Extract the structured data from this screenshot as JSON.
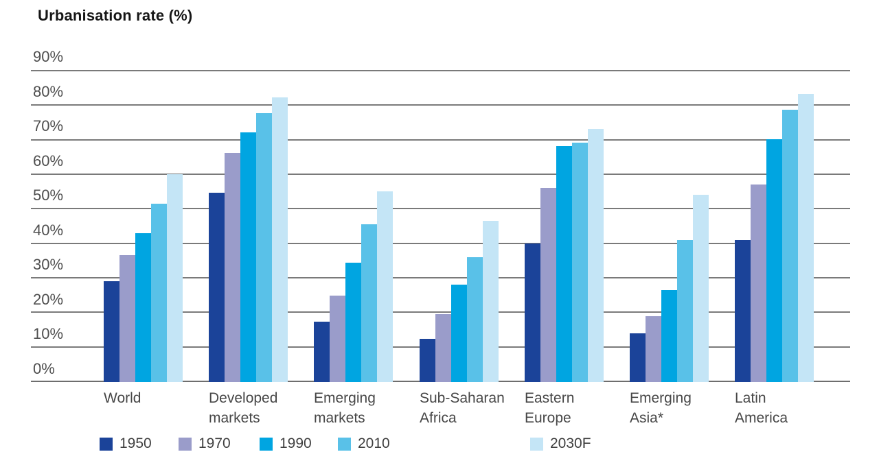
{
  "title": "Urbanisation rate (%)",
  "chart_data": {
    "type": "bar",
    "title": "Urbanisation rate (%)",
    "xlabel": "",
    "ylabel": "Urbanisation rate (%)",
    "ymax": 90,
    "ytick_step": 10,
    "ytick_labels": [
      "90%",
      "80%",
      "70%",
      "60%",
      "50%",
      "40%",
      "30%",
      "20%",
      "10%",
      "0%"
    ],
    "grid": true,
    "legend_position": "bottom",
    "categories": [
      "World",
      "Developed markets",
      "Emerging markets",
      "Sub-Saharan Africa",
      "Eastern Europe",
      "Emerging Asia*",
      "Latin America"
    ],
    "category_label_lines": [
      [
        "World"
      ],
      [
        "Developed",
        "markets"
      ],
      [
        "Emerging",
        "markets"
      ],
      [
        "Sub-Saharan",
        "Africa"
      ],
      [
        "Eastern",
        "Europe"
      ],
      [
        "Emerging",
        "Asia*"
      ],
      [
        "Latin",
        "America"
      ]
    ],
    "series": [
      {
        "name": "1950",
        "color": "#1b4399",
        "values": [
          29,
          54.5,
          17.5,
          12.5,
          40,
          14,
          41
        ]
      },
      {
        "name": "1970",
        "color": "#9a9cca",
        "values": [
          36.5,
          66,
          25,
          19.5,
          56,
          19,
          57
        ]
      },
      {
        "name": "1990",
        "color": "#00a5e1",
        "values": [
          43,
          72,
          34.5,
          28,
          68,
          26.5,
          70
        ]
      },
      {
        "name": "2010",
        "color": "#59c1e8",
        "values": [
          51.5,
          77.5,
          45.5,
          36,
          69,
          41,
          78.5
        ]
      },
      {
        "name": "2030F",
        "color": "#c4e5f6",
        "values": [
          60,
          82,
          55,
          46.5,
          73,
          54,
          83
        ]
      }
    ]
  },
  "colors": {
    "grid": "#7a7a7a",
    "axis_baseline": "#6e6e6e",
    "title_text": "#161616",
    "tick_text": "#4f4f4f",
    "category_text": "#474747",
    "legend_text": "#3f3f3f",
    "background": "#ffffff"
  }
}
